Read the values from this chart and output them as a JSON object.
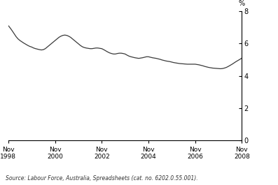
{
  "ylabel": "%",
  "source": "Source: Labour Force, Australia, Spreadsheets (cat. no. 6202.0.55.001).",
  "ylim": [
    0,
    8
  ],
  "yticks": [
    0,
    2,
    4,
    6,
    8
  ],
  "xtick_labels": [
    "Nov\n1998",
    "Nov\n2000",
    "Nov\n2002",
    "Nov\n2004",
    "Nov\n2006",
    "Nov\n2008"
  ],
  "xtick_positions": [
    0,
    24,
    48,
    72,
    96,
    120
  ],
  "line_color": "#3a3a3a",
  "background_color": "#ffffff",
  "x_values": [
    0,
    1,
    2,
    3,
    4,
    5,
    6,
    7,
    8,
    9,
    10,
    11,
    12,
    13,
    14,
    15,
    16,
    17,
    18,
    19,
    20,
    21,
    22,
    23,
    24,
    25,
    26,
    27,
    28,
    29,
    30,
    31,
    32,
    33,
    34,
    35,
    36,
    37,
    38,
    39,
    40,
    41,
    42,
    43,
    44,
    45,
    46,
    47,
    48,
    49,
    50,
    51,
    52,
    53,
    54,
    55,
    56,
    57,
    58,
    59,
    60,
    61,
    62,
    63,
    64,
    65,
    66,
    67,
    68,
    69,
    70,
    71,
    72,
    73,
    74,
    75,
    76,
    77,
    78,
    79,
    80,
    81,
    82,
    83,
    84,
    85,
    86,
    87,
    88,
    89,
    90,
    91,
    92,
    93,
    94,
    95,
    96,
    97,
    98,
    99,
    100,
    101,
    102,
    103,
    104,
    105,
    106,
    107,
    108,
    109,
    110,
    111,
    112,
    113,
    114,
    115,
    116,
    117,
    118,
    119,
    120
  ],
  "y_values": [
    7.1,
    6.95,
    6.78,
    6.6,
    6.42,
    6.28,
    6.18,
    6.1,
    6.02,
    5.95,
    5.88,
    5.82,
    5.78,
    5.72,
    5.68,
    5.65,
    5.62,
    5.6,
    5.62,
    5.68,
    5.78,
    5.88,
    5.98,
    6.08,
    6.18,
    6.28,
    6.38,
    6.45,
    6.5,
    6.52,
    6.5,
    6.45,
    6.38,
    6.28,
    6.18,
    6.08,
    5.98,
    5.88,
    5.8,
    5.75,
    5.72,
    5.7,
    5.68,
    5.68,
    5.7,
    5.72,
    5.72,
    5.7,
    5.68,
    5.62,
    5.55,
    5.48,
    5.42,
    5.38,
    5.35,
    5.35,
    5.38,
    5.4,
    5.4,
    5.38,
    5.35,
    5.28,
    5.22,
    5.18,
    5.15,
    5.12,
    5.1,
    5.08,
    5.1,
    5.12,
    5.15,
    5.18,
    5.18,
    5.15,
    5.12,
    5.1,
    5.08,
    5.05,
    5.02,
    4.98,
    4.95,
    4.92,
    4.9,
    4.88,
    4.85,
    4.82,
    4.8,
    4.78,
    4.76,
    4.75,
    4.74,
    4.73,
    4.72,
    4.72,
    4.72,
    4.72,
    4.72,
    4.7,
    4.68,
    4.65,
    4.62,
    4.58,
    4.55,
    4.52,
    4.5,
    4.48,
    4.47,
    4.46,
    4.45,
    4.44,
    4.45,
    4.48,
    4.52,
    4.58,
    4.65,
    4.72,
    4.8,
    4.88,
    4.95,
    5.02,
    5.1
  ]
}
